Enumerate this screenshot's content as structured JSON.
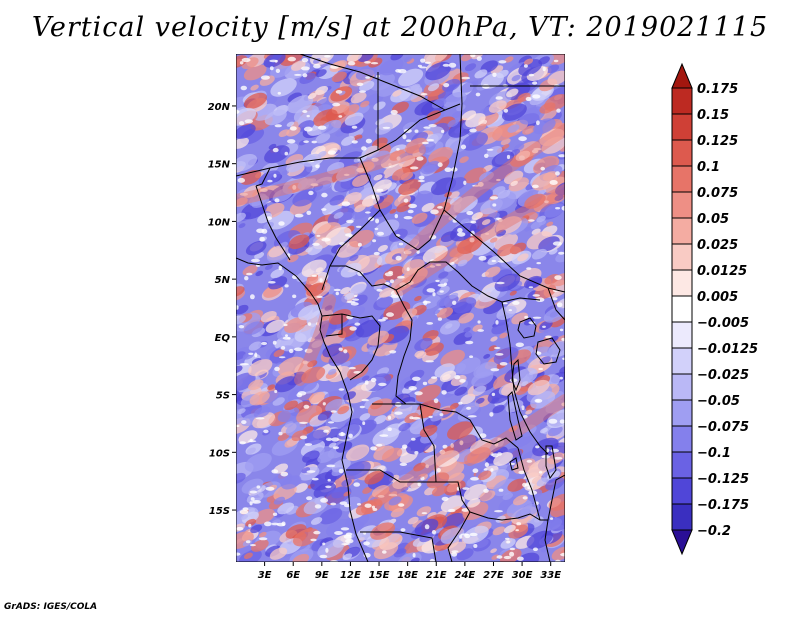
{
  "title": "Vertical velocity [m/s] at 200hPa, VT: 2019021115",
  "credit": "GrADS: IGES/COLA",
  "map": {
    "lon_range": [
      0,
      34.5
    ],
    "lat_range": [
      -19.5,
      24.5
    ],
    "lat_ticks": [
      {
        "value": 20,
        "label": "20N"
      },
      {
        "value": 15,
        "label": "15N"
      },
      {
        "value": 10,
        "label": "10N"
      },
      {
        "value": 5,
        "label": "5N"
      },
      {
        "value": 0,
        "label": "EQ"
      },
      {
        "value": -5,
        "label": "5S"
      },
      {
        "value": -10,
        "label": "10S"
      },
      {
        "value": -15,
        "label": "15S"
      }
    ],
    "lon_ticks": [
      {
        "value": 3,
        "label": "3E"
      },
      {
        "value": 6,
        "label": "6E"
      },
      {
        "value": 9,
        "label": "9E"
      },
      {
        "value": 12,
        "label": "12E"
      },
      {
        "value": 15,
        "label": "15E"
      },
      {
        "value": 18,
        "label": "18E"
      },
      {
        "value": 21,
        "label": "21E"
      },
      {
        "value": 24,
        "label": "24E"
      },
      {
        "value": 27,
        "label": "27E"
      },
      {
        "value": 30,
        "label": "30E"
      },
      {
        "value": 33,
        "label": "33E"
      }
    ],
    "field": "vertical velocity",
    "units": "m/s",
    "level": "200hPa"
  },
  "colorbar": {
    "colors": [
      "#2a0f96",
      "#3a2fc0",
      "#5046d8",
      "#6a62e4",
      "#8480ec",
      "#9f9ef2",
      "#bab8f6",
      "#d2d1fa",
      "#eceafd",
      "#ffffff",
      "#fde8e4",
      "#f9cbc4",
      "#f4aca2",
      "#ee8f85",
      "#e77468",
      "#dd5a4e",
      "#cf4036",
      "#bd2a22",
      "#a3170f"
    ],
    "labels": [
      "0.175",
      "0.15",
      "0.125",
      "0.1",
      "0.075",
      "0.05",
      "0.025",
      "0.0125",
      "0.005",
      "−0.005",
      "−0.0125",
      "−0.025",
      "−0.05",
      "−0.075",
      "−0.1",
      "−0.125",
      "−0.175",
      "−0.2"
    ]
  }
}
